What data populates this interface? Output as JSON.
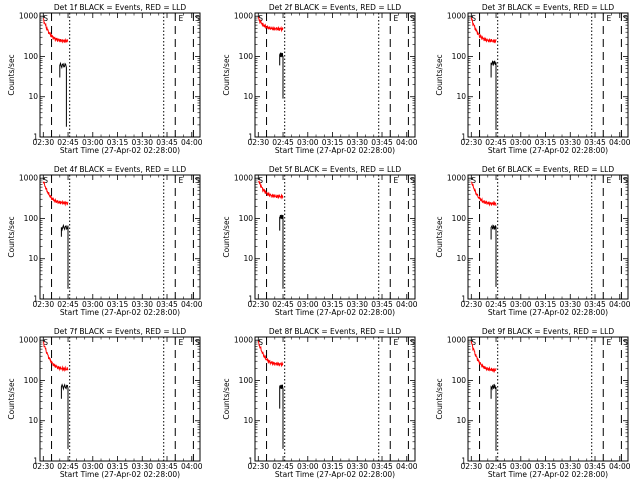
{
  "figure": {
    "xlabel": "Start Time (27-Apr-02 02:28:00)",
    "ylabel": "Counts/sec"
  },
  "colors": {
    "events": "#000000",
    "lld": "#ff0000",
    "axis": "#000000"
  },
  "chart_data": [
    {
      "type": "line",
      "title": "Det 1f BLACK = Events, RED = LLD",
      "lld": {
        "x0": "02:30",
        "y0": 850,
        "y1": 240,
        "x1": "02:45"
      },
      "events": {
        "x0": "02:40",
        "x1": "02:44",
        "level": 60,
        "low": 30,
        "drop": 1.8
      },
      "markers": {
        "S_left": "02:30"
      }
    },
    {
      "type": "line",
      "title": "Det 2f BLACK = Events, RED = LLD",
      "lld": {
        "x0": "02:30",
        "y0": 900,
        "y1": 480,
        "x1": "02:45"
      },
      "events": {
        "x0": "02:43",
        "x1": "02:45",
        "level": 110,
        "low": 60,
        "drop": 9
      },
      "markers": {
        "S_left": "02:30"
      }
    },
    {
      "type": "line",
      "title": "Det 3f BLACK = Events, RED = LLD",
      "lld": {
        "x0": "02:30",
        "y0": 900,
        "y1": 240,
        "x1": "02:45"
      },
      "events": {
        "x0": "02:42",
        "x1": "02:45",
        "level": 70,
        "low": 30,
        "drop": 1.5
      },
      "markers": {
        "S_left": "02:30"
      }
    },
    {
      "type": "line",
      "title": "Det 4f BLACK = Events, RED = LLD",
      "lld": {
        "x0": "02:30",
        "y0": 850,
        "y1": 240,
        "x1": "02:45"
      },
      "events": {
        "x0": "02:41",
        "x1": "02:45",
        "level": 60,
        "low": 35,
        "drop": 1.8
      },
      "markers": {
        "S_left": "02:30"
      }
    },
    {
      "type": "line",
      "title": "Det 5f BLACK = Events, RED = LLD",
      "lld": {
        "x0": "02:30",
        "y0": 900,
        "y1": 350,
        "x1": "02:45"
      },
      "events": {
        "x0": "02:43",
        "x1": "02:45",
        "level": 110,
        "low": 50,
        "drop": 1.8
      },
      "markers": {
        "S_left": "02:30"
      }
    },
    {
      "type": "line",
      "title": "Det 6f BLACK = Events, RED = LLD",
      "lld": {
        "x0": "02:30",
        "y0": 850,
        "y1": 230,
        "x1": "02:45"
      },
      "events": {
        "x0": "02:42",
        "x1": "02:45",
        "level": 60,
        "low": 30,
        "drop": 2
      },
      "markers": {
        "S_left": "02:30"
      }
    },
    {
      "type": "line",
      "title": "Det 7f BLACK = Events, RED = LLD",
      "lld": {
        "x0": "02:30",
        "y0": 900,
        "y1": 190,
        "x1": "02:45"
      },
      "events": {
        "x0": "02:41",
        "x1": "02:45",
        "level": 70,
        "low": 35,
        "drop": 2
      },
      "markers": {
        "S_left": "02:30"
      }
    },
    {
      "type": "line",
      "title": "Det 8f BLACK = Events, RED = LLD",
      "lld": {
        "x0": "02:30",
        "y0": 900,
        "y1": 250,
        "x1": "02:45"
      },
      "events": {
        "x0": "02:43",
        "x1": "02:45",
        "level": 70,
        "low": 20,
        "drop": 2
      },
      "markers": {
        "S_left": "02:30"
      }
    },
    {
      "type": "line",
      "title": "Det 9f BLACK = Events, RED = LLD",
      "lld": {
        "x0": "02:30",
        "y0": 900,
        "y1": 180,
        "x1": "02:45"
      },
      "events": {
        "x0": "02:42",
        "x1": "02:45",
        "level": 70,
        "low": 35,
        "drop": 1.8
      },
      "markers": {
        "S_left": "02:30"
      }
    }
  ],
  "axes": {
    "xticks": [
      "02:30",
      "02:45",
      "03:00",
      "03:15",
      "03:30",
      "03:45",
      "04:00"
    ],
    "yticks": [
      {
        "value": 1,
        "label": "1"
      },
      {
        "value": 10,
        "label": "10"
      },
      {
        "value": 100,
        "label": "100"
      },
      {
        "value": 1000,
        "label": "1000"
      }
    ],
    "ylim": [
      1,
      1200
    ],
    "xlim": [
      "02:28",
      "04:05"
    ],
    "vlines": [
      {
        "t": "02:35",
        "style": "dash"
      },
      {
        "t": "02:46",
        "style": "dot"
      },
      {
        "t": "03:43",
        "style": "dot"
      },
      {
        "t": "03:50",
        "style": "dash"
      },
      {
        "t": "04:01",
        "style": "dash"
      }
    ],
    "letters": [
      {
        "t": "02:30",
        "label": "S"
      },
      {
        "t": "03:52",
        "label": "E"
      },
      {
        "t": "04:02",
        "label": "S"
      }
    ]
  }
}
